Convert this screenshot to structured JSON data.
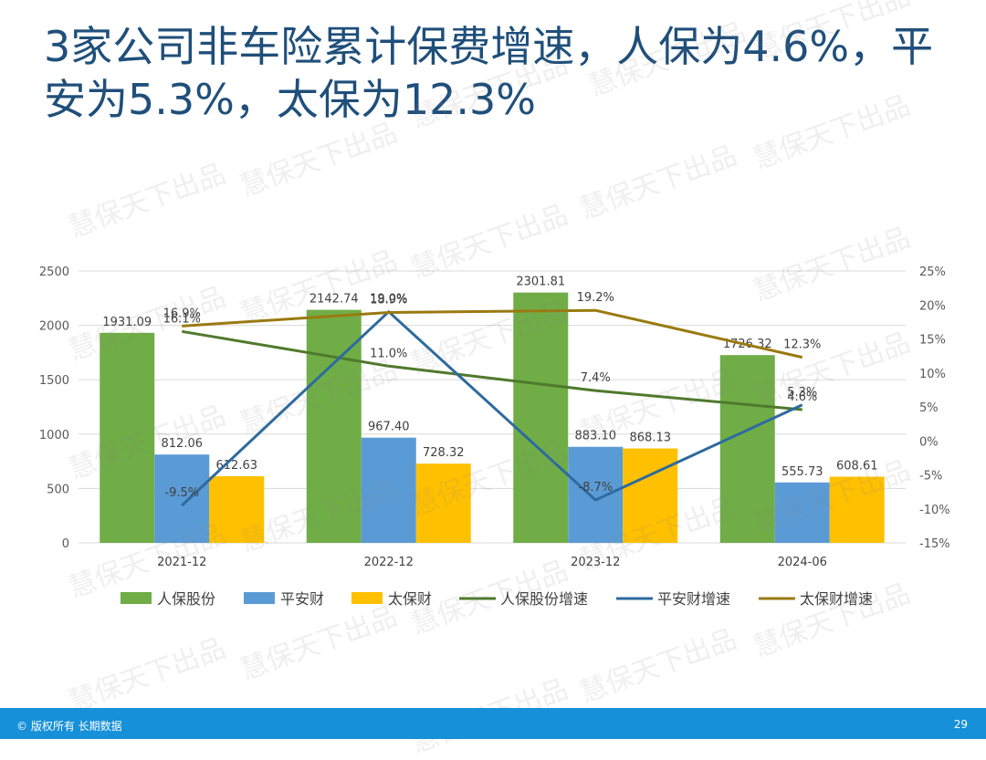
{
  "title": "3家公司非车险累计保费增速，人保为4.6%，平安为5.3%，太保为12.3%",
  "footer": {
    "copyright": "© 版权所有 长期数据",
    "page": "29"
  },
  "watermark": "慧保天下出品",
  "chart_data": {
    "type": "bar+line",
    "categories": [
      "2021-12",
      "2022-12",
      "2023-12",
      "2024-06"
    ],
    "left_axis": {
      "min": 0,
      "max": 2500,
      "step": 500,
      "ticks": [
        "0",
        "500",
        "1000",
        "1500",
        "2000",
        "2500"
      ]
    },
    "right_axis": {
      "min": -15,
      "max": 25,
      "step": 5,
      "ticks": [
        "-15%",
        "-10%",
        "-5%",
        "0%",
        "5%",
        "10%",
        "15%",
        "20%",
        "25%"
      ]
    },
    "bar_series": [
      {
        "name": "人保股份",
        "color": "#70ad47",
        "values": [
          1931.09,
          2142.74,
          2301.81,
          1726.32
        ],
        "labels": [
          "1931.09",
          "2142.74",
          "2301.81",
          "1726.32"
        ]
      },
      {
        "name": "平安财",
        "color": "#5b9bd5",
        "values": [
          812.06,
          967.4,
          883.1,
          555.73
        ],
        "labels": [
          "812.06",
          "967.40",
          "883.10",
          "555.73"
        ]
      },
      {
        "name": "太保财",
        "color": "#ffc000",
        "values": [
          612.63,
          728.32,
          868.13,
          608.61
        ],
        "labels": [
          "612.63",
          "728.32",
          "868.13",
          "608.61"
        ]
      }
    ],
    "line_series": [
      {
        "name": "人保股份增速",
        "color": "#4f7a2c",
        "values": [
          16.1,
          11.0,
          7.4,
          4.6
        ],
        "labels": [
          "16.1%",
          "11.0%",
          "7.4%",
          "4.6%"
        ]
      },
      {
        "name": "平安财增速",
        "color": "#2e6a9e",
        "values": [
          -9.5,
          19.0,
          -8.7,
          5.3
        ],
        "labels": [
          "-9.5%",
          "19.0%",
          "-8.7%",
          "5.3%"
        ]
      },
      {
        "name": "太保财增速",
        "color": "#9a7a10",
        "values": [
          16.9,
          18.9,
          19.2,
          12.3
        ],
        "labels": [
          "16.9%",
          "18.9%",
          "19.2%",
          "12.3%"
        ]
      }
    ],
    "legend": [
      "人保股份",
      "平安财",
      "太保财",
      "人保股份增速",
      "平安财增速",
      "太保财增速"
    ],
    "legend_position": "bottom",
    "grid": true
  }
}
